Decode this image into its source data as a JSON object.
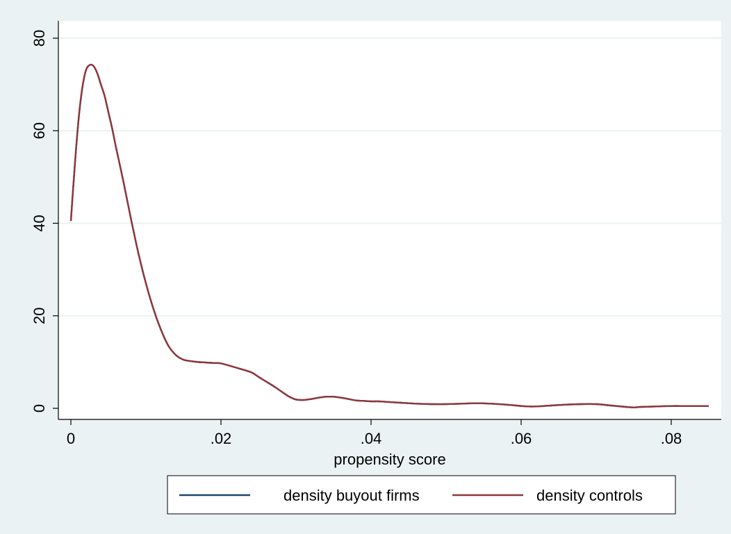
{
  "chart_data": {
    "type": "line",
    "title": "",
    "xlabel": "propensity score",
    "ylabel": "",
    "xlim": [
      0,
      0.085
    ],
    "ylim": [
      0,
      80
    ],
    "xticks": [
      0,
      0.02,
      0.04,
      0.06,
      0.08
    ],
    "xtick_labels": [
      "0",
      ".02",
      ".04",
      ".06",
      ".08"
    ],
    "yticks": [
      0,
      20,
      40,
      60,
      80
    ],
    "ytick_labels": [
      "0",
      "20",
      "40",
      "60",
      "80"
    ],
    "grid": "horizontal",
    "legend_position": "bottom",
    "series": [
      {
        "name": "density buyout firms",
        "color": "#1a476f",
        "x": [
          0.0,
          0.0005,
          0.001,
          0.0015,
          0.002,
          0.0025,
          0.003,
          0.0035,
          0.004,
          0.0045,
          0.005,
          0.0055,
          0.006,
          0.007,
          0.008,
          0.009,
          0.01,
          0.011,
          0.012,
          0.013,
          0.014,
          0.015,
          0.016,
          0.017,
          0.018,
          0.019,
          0.02,
          0.022,
          0.024,
          0.025,
          0.026,
          0.027,
          0.028,
          0.029,
          0.03,
          0.031,
          0.032,
          0.033,
          0.034,
          0.035,
          0.036,
          0.037,
          0.038,
          0.039,
          0.04,
          0.041,
          0.042,
          0.044,
          0.046,
          0.048,
          0.05,
          0.052,
          0.054,
          0.056,
          0.058,
          0.06,
          0.061,
          0.062,
          0.063,
          0.064,
          0.066,
          0.068,
          0.07,
          0.072,
          0.074,
          0.075,
          0.076,
          0.078,
          0.08,
          0.082,
          0.084,
          0.085
        ],
        "y": [
          40.5,
          52.0,
          62.0,
          69.0,
          73.0,
          74.2,
          74.0,
          72.5,
          70.0,
          67.5,
          64.0,
          60.5,
          56.5,
          49.0,
          41.0,
          33.5,
          27.0,
          21.5,
          17.0,
          13.5,
          11.5,
          10.5,
          10.2,
          10.0,
          9.9,
          9.8,
          9.7,
          8.8,
          7.8,
          6.8,
          5.8,
          4.8,
          3.7,
          2.6,
          1.9,
          1.8,
          2.0,
          2.3,
          2.5,
          2.5,
          2.3,
          2.0,
          1.7,
          1.6,
          1.5,
          1.5,
          1.4,
          1.2,
          1.0,
          0.9,
          0.9,
          1.0,
          1.1,
          1.0,
          0.8,
          0.5,
          0.4,
          0.4,
          0.5,
          0.6,
          0.8,
          0.9,
          0.9,
          0.6,
          0.3,
          0.2,
          0.3,
          0.4,
          0.5,
          0.5,
          0.5,
          0.5
        ]
      },
      {
        "name": "density controls",
        "color": "#90353b",
        "x": [
          0.0,
          0.0005,
          0.001,
          0.0015,
          0.002,
          0.0025,
          0.003,
          0.0035,
          0.004,
          0.0045,
          0.005,
          0.0055,
          0.006,
          0.007,
          0.008,
          0.009,
          0.01,
          0.011,
          0.012,
          0.013,
          0.014,
          0.015,
          0.016,
          0.017,
          0.018,
          0.019,
          0.02,
          0.022,
          0.024,
          0.025,
          0.026,
          0.027,
          0.028,
          0.029,
          0.03,
          0.031,
          0.032,
          0.033,
          0.034,
          0.035,
          0.036,
          0.037,
          0.038,
          0.039,
          0.04,
          0.041,
          0.042,
          0.044,
          0.046,
          0.048,
          0.05,
          0.052,
          0.054,
          0.056,
          0.058,
          0.06,
          0.061,
          0.062,
          0.063,
          0.064,
          0.066,
          0.068,
          0.07,
          0.072,
          0.074,
          0.075,
          0.076,
          0.078,
          0.08,
          0.082,
          0.084,
          0.085
        ],
        "y": [
          40.5,
          52.0,
          62.0,
          69.0,
          73.0,
          74.2,
          74.0,
          72.5,
          70.0,
          67.5,
          64.0,
          60.5,
          56.5,
          49.0,
          41.0,
          33.5,
          27.0,
          21.5,
          17.0,
          13.5,
          11.5,
          10.5,
          10.2,
          10.0,
          9.9,
          9.8,
          9.7,
          8.8,
          7.8,
          6.8,
          5.8,
          4.8,
          3.7,
          2.6,
          1.9,
          1.8,
          2.0,
          2.3,
          2.5,
          2.5,
          2.3,
          2.0,
          1.7,
          1.6,
          1.5,
          1.5,
          1.4,
          1.2,
          1.0,
          0.9,
          0.9,
          1.0,
          1.1,
          1.0,
          0.8,
          0.5,
          0.4,
          0.4,
          0.5,
          0.6,
          0.8,
          0.9,
          0.9,
          0.6,
          0.3,
          0.2,
          0.3,
          0.4,
          0.5,
          0.5,
          0.5,
          0.5
        ]
      }
    ],
    "colors": {
      "outer_background": "#eaf2f3",
      "plot_background": "#ffffff",
      "gridline": "#eaf2f3",
      "axis": "#000000"
    }
  }
}
